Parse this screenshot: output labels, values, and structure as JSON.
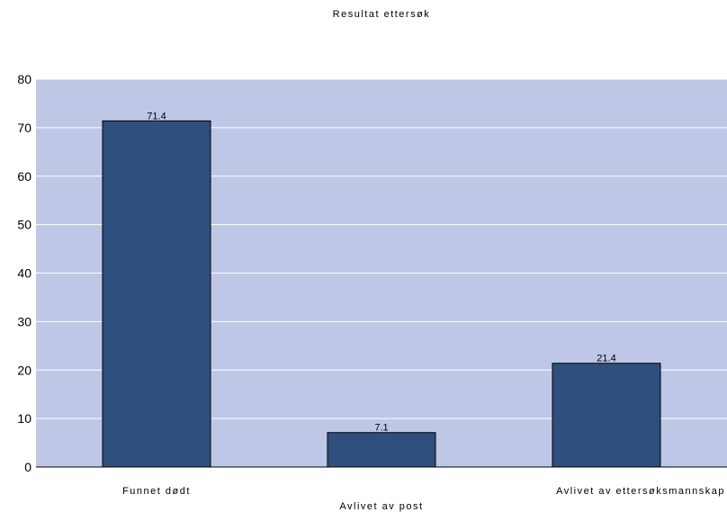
{
  "chart_data": {
    "type": "bar",
    "title": "Resultat ettersøk",
    "xlabel": "",
    "ylabel": "",
    "categories": [
      "Funnet dødt",
      "Avlivet av post",
      "Avlivet av ettersøksmannskap"
    ],
    "values": [
      71.4,
      7.1,
      21.4
    ],
    "data_labels": [
      "71.4",
      "7.1",
      "21.4"
    ],
    "ylim": [
      0,
      80
    ],
    "yticks": [
      0,
      10,
      20,
      30,
      40,
      50,
      60,
      70,
      80
    ],
    "grid": true,
    "legend": "none",
    "colors": {
      "plot_background": "#bfc7e6",
      "bar_fill": "#2f4f7f",
      "bar_stroke": "#000000",
      "grid": "#ffffff"
    }
  }
}
